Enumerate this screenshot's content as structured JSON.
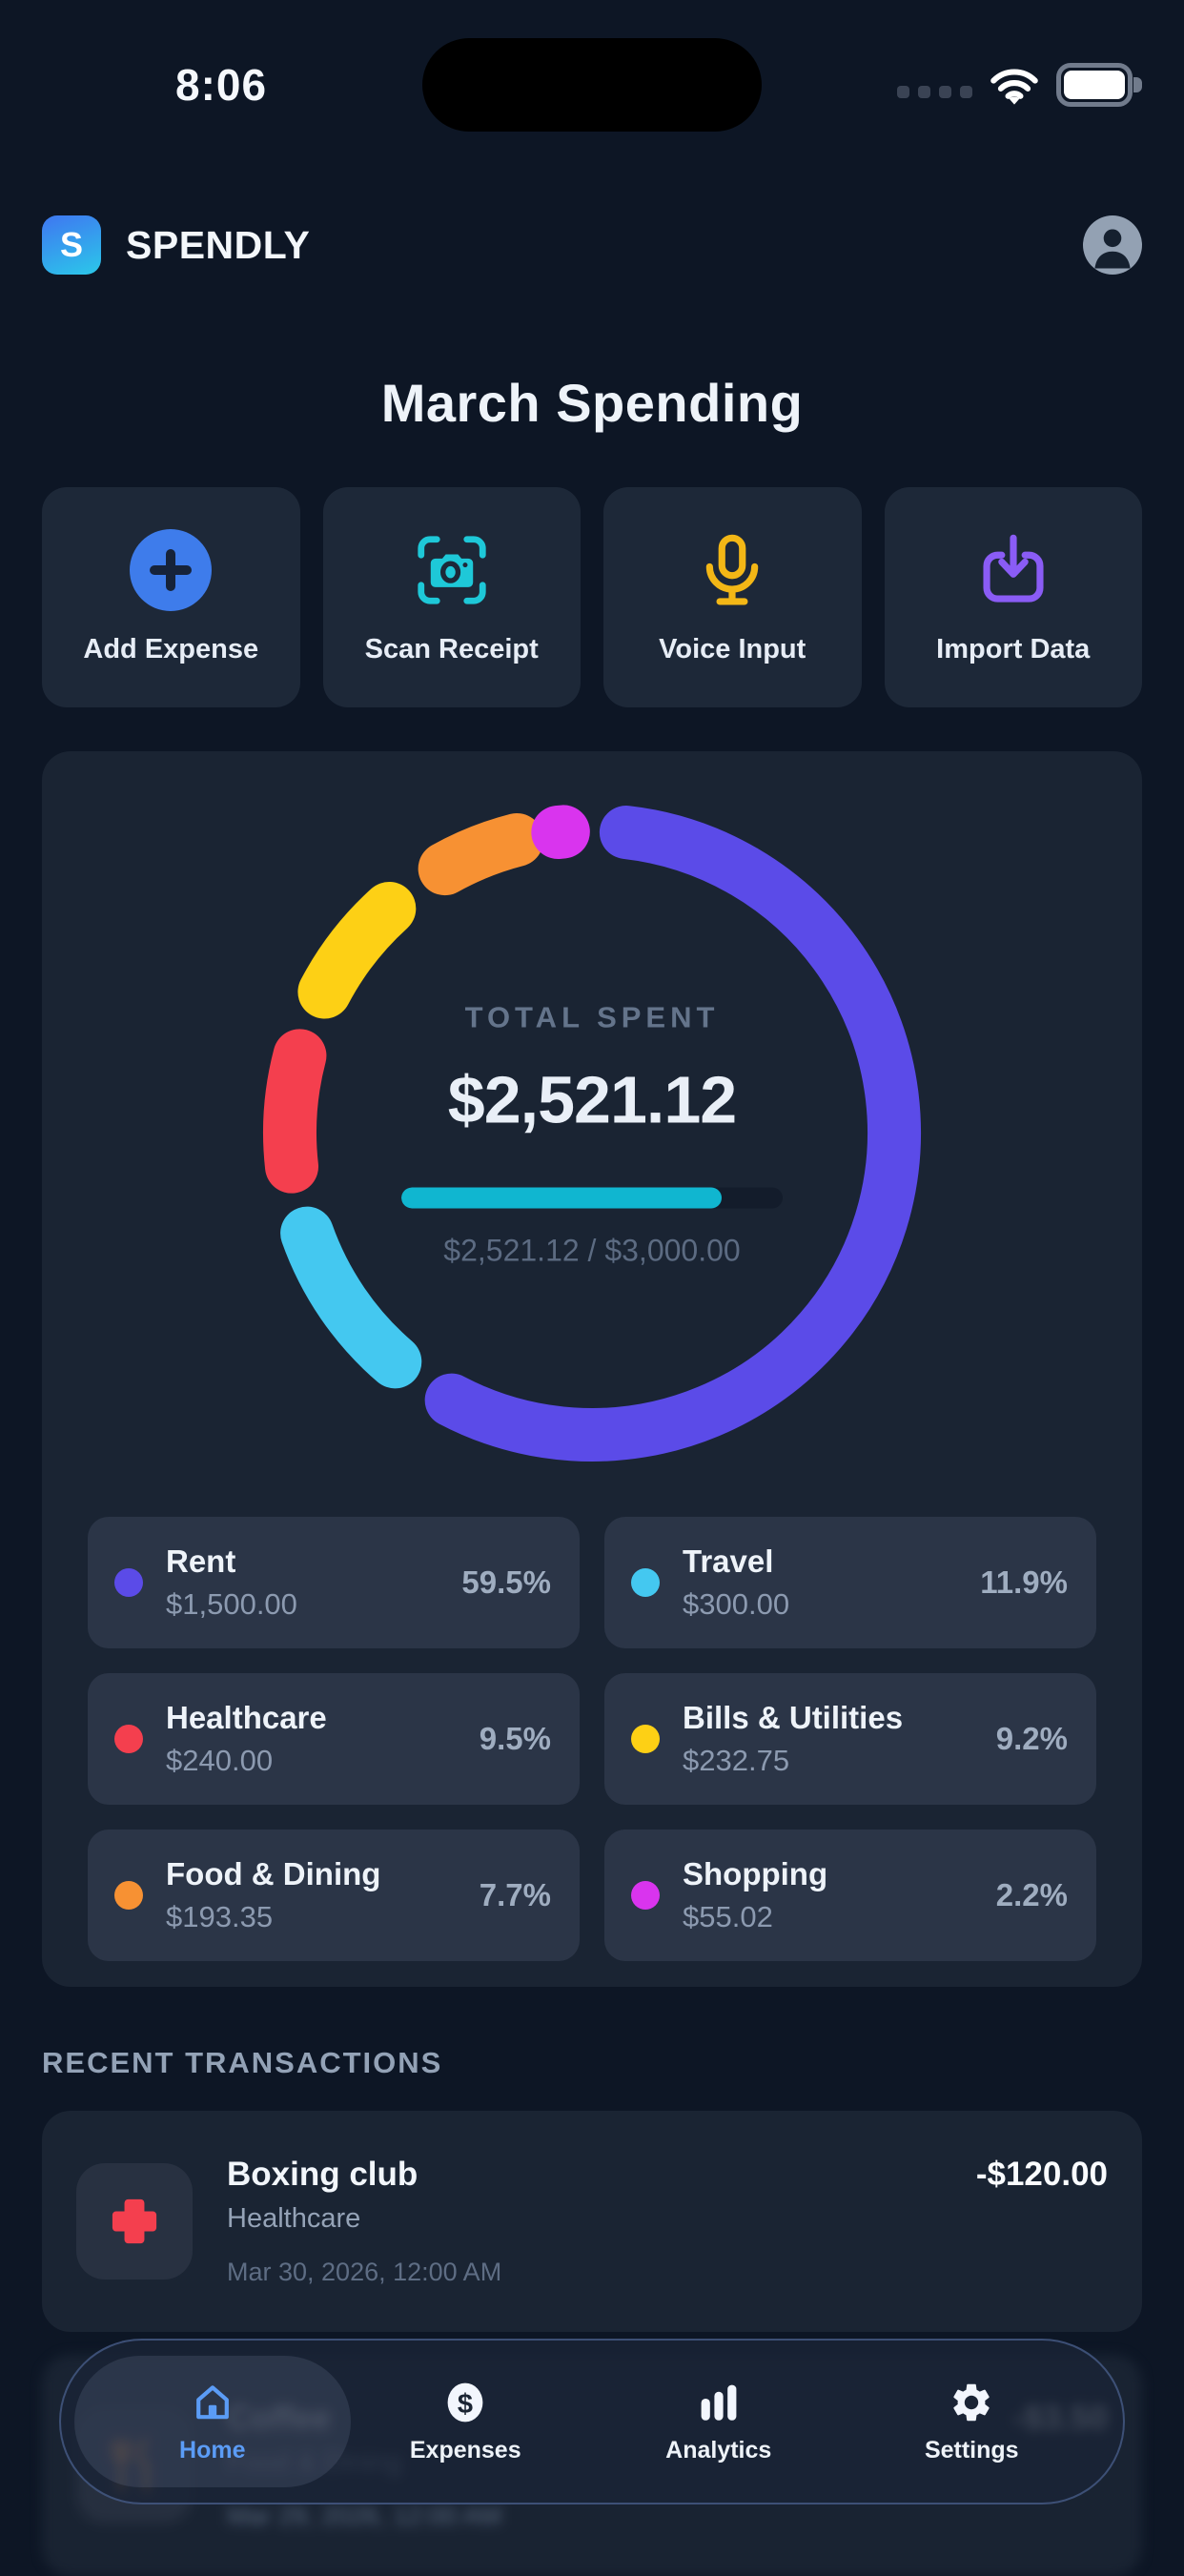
{
  "colors": {
    "accent_blue": "#3e7ceb",
    "scan_teal": "#1ec8d8",
    "mic_amber": "#f3b716",
    "import_purple": "#8a5cf5",
    "progress_teal": "#10b6d0",
    "tab_active_blue": "#5b9cf6"
  },
  "status_bar": {
    "time": "8:06"
  },
  "header": {
    "logo_letter": "S",
    "app_name": "SPENDLY"
  },
  "page_title": "March Spending",
  "actions": [
    {
      "label": "Add Expense",
      "icon": "plus-circle-icon"
    },
    {
      "label": "Scan Receipt",
      "icon": "camera-scan-icon"
    },
    {
      "label": "Voice Input",
      "icon": "microphone-icon"
    },
    {
      "label": "Import Data",
      "icon": "import-tray-icon"
    }
  ],
  "summary": {
    "label": "TOTAL SPENT",
    "total": "$2,521.12",
    "progress_percent": 84,
    "caption": "$2,521.12 / $3,000.00"
  },
  "chart_data": {
    "type": "donut",
    "title": "March Spending",
    "total_spent": 2521.12,
    "budget": 3000.0,
    "legend_position": "below-grid",
    "segments": [
      {
        "label": "Rent",
        "value": 1500.0,
        "amount": "$1,500.00",
        "percent": 59.5,
        "percent_label": "59.5%",
        "color": "#5b4be8"
      },
      {
        "label": "Travel",
        "value": 300.0,
        "amount": "$300.00",
        "percent": 11.9,
        "percent_label": "11.9%",
        "color": "#44c8f0"
      },
      {
        "label": "Healthcare",
        "value": 240.0,
        "amount": "$240.00",
        "percent": 9.5,
        "percent_label": "9.5%",
        "color": "#f43f4e"
      },
      {
        "label": "Bills & Utilities",
        "value": 232.75,
        "amount": "$232.75",
        "percent": 9.2,
        "percent_label": "9.2%",
        "color": "#fdd015"
      },
      {
        "label": "Food & Dining",
        "value": 193.35,
        "amount": "$193.35",
        "percent": 7.7,
        "percent_label": "7.7%",
        "color": "#f79133"
      },
      {
        "label": "Shopping",
        "value": 55.02,
        "amount": "$55.02",
        "percent": 2.2,
        "percent_label": "2.2%",
        "color": "#d934ee"
      }
    ]
  },
  "recent": {
    "section_title": "RECENT TRANSACTIONS",
    "transactions": [
      {
        "title": "Boxing club",
        "category": "Healthcare",
        "date": "Mar 30, 2026, 12:00 AM",
        "amount": "-$120.00",
        "icon": "medical-cross-icon",
        "icon_color": "#f43f4e"
      },
      {
        "title": "Coffee",
        "category": "Food & Dining",
        "date": "Mar 29, 2026, 12:00 AM",
        "amount": "-$3.50",
        "icon": "utensils-icon",
        "icon_color": "#f79133",
        "blurred": true
      }
    ]
  },
  "tab_bar": {
    "tabs": [
      {
        "label": "Home",
        "icon": "home-icon",
        "active": true
      },
      {
        "label": "Expenses",
        "icon": "dollar-icon",
        "active": false
      },
      {
        "label": "Analytics",
        "icon": "bar-chart-icon",
        "active": false
      },
      {
        "label": "Settings",
        "icon": "gear-icon",
        "active": false
      }
    ]
  }
}
